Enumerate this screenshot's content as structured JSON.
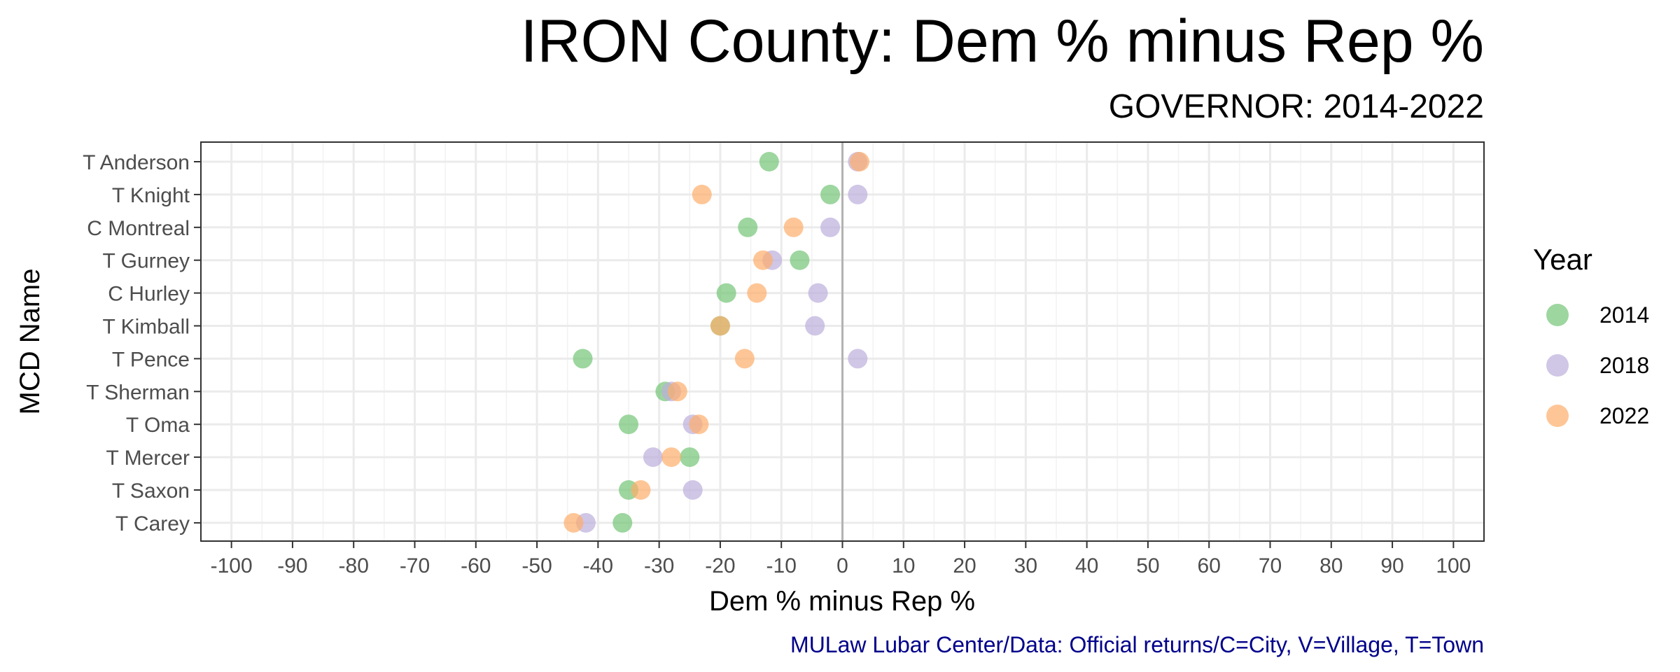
{
  "chart_data": {
    "type": "scatter",
    "title": "IRON County: Dem % minus Rep %",
    "subtitle": "GOVERNOR: 2014-2022",
    "xlabel": "Dem % minus Rep %",
    "ylabel": "MCD Name",
    "caption": "MULaw Lubar Center/Data: Official returns/C=City, V=Village, T=Town",
    "xlim": [
      -105,
      105
    ],
    "x_ticks": [
      -100,
      -90,
      -80,
      -70,
      -60,
      -50,
      -40,
      -30,
      -20,
      -10,
      0,
      10,
      20,
      30,
      40,
      50,
      60,
      70,
      80,
      90,
      100
    ],
    "x_tick_labels": [
      "-100",
      "-90",
      "-80",
      "-70",
      "-60",
      "-50",
      "-40",
      "-30",
      "-20",
      "-10",
      "0",
      "10",
      "20",
      "30",
      "40",
      "50",
      "60",
      "70",
      "80",
      "90",
      "100"
    ],
    "categories": [
      "T Anderson",
      "T Knight",
      "C Montreal",
      "T Gurney",
      "C Hurley",
      "T Kimball",
      "T Pence",
      "T Sherman",
      "T Oma",
      "T Mercer",
      "T Saxon",
      "T Carey"
    ],
    "grid": true,
    "legend": {
      "title": "Year",
      "position": "right"
    },
    "series": [
      {
        "name": "2014",
        "color": "#74c476",
        "values": [
          -12,
          -2,
          -15.5,
          -7,
          -19,
          -20,
          -42.5,
          -29,
          -35,
          -25,
          -35,
          -36
        ]
      },
      {
        "name": "2018",
        "color": "#bcaedc",
        "values": [
          2.5,
          2.5,
          -2,
          -11.5,
          -4,
          -4.5,
          2.5,
          -28,
          -24.5,
          -31,
          -24.5,
          -42
        ]
      },
      {
        "name": "2022",
        "color": "#fdae6b",
        "values": [
          2.8,
          -23,
          -8,
          -13,
          -14,
          -20,
          -16,
          -27,
          -23.5,
          -28,
          -33,
          -44
        ]
      }
    ],
    "colors": {
      "caption": "#00008b",
      "zero_line": "#b3b3b3"
    }
  }
}
